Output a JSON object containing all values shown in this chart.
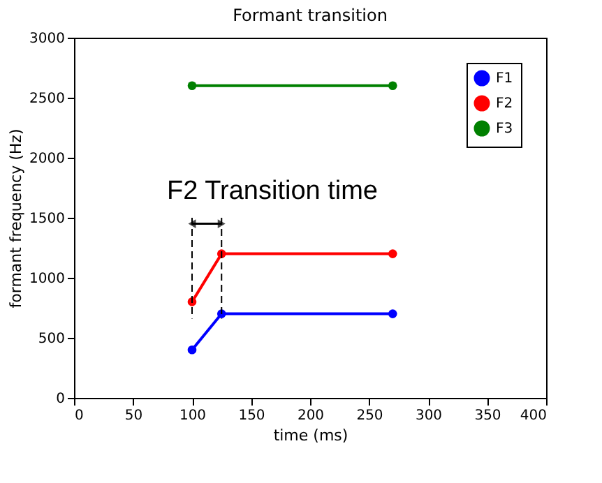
{
  "chart_data": {
    "type": "line",
    "title": "Formant transition",
    "xlabel": "time (ms)",
    "ylabel": "formant frequency (Hz)",
    "series": [
      {
        "name": "F1",
        "color": "#0000ff",
        "x": [
          100,
          125,
          270
        ],
        "values": [
          400,
          700,
          700
        ]
      },
      {
        "name": "F2",
        "color": "#ff0000",
        "x": [
          100,
          125,
          270
        ],
        "values": [
          800,
          1200,
          1200
        ]
      },
      {
        "name": "F3",
        "color": "#008000",
        "x": [
          100,
          270
        ],
        "values": [
          2600,
          2600
        ]
      }
    ],
    "annotations": [
      {
        "text": "F2 Transition time",
        "x": 125,
        "y": 1450
      }
    ],
    "xlim": [
      0,
      400
    ],
    "xticks": [
      0,
      50,
      100,
      150,
      200,
      250,
      300,
      350,
      400
    ],
    "ylim": [
      0,
      3000
    ],
    "yticks": [
      0,
      500,
      1000,
      1500,
      2000,
      2500,
      3000
    ],
    "marker": "circle",
    "line_style": "solid",
    "grid": false,
    "legend": "top right"
  }
}
